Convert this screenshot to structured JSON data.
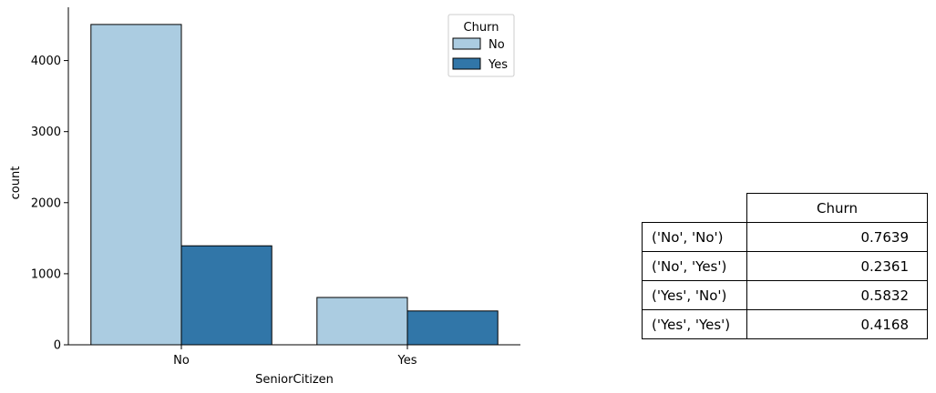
{
  "chart_data": {
    "type": "bar",
    "xlabel": "SeniorCitizen",
    "ylabel": "count",
    "categories": [
      "No",
      "Yes"
    ],
    "ylim": [
      0,
      4750
    ],
    "yticks": [
      0,
      1000,
      2000,
      3000,
      4000
    ],
    "legend": {
      "title": "Churn",
      "position": "top-right"
    },
    "series": [
      {
        "name": "No",
        "color": "#abcce1",
        "values": [
          4508,
          666
        ]
      },
      {
        "name": "Yes",
        "color": "#3176a8",
        "values": [
          1393,
          476
        ]
      }
    ],
    "grid": false
  },
  "table": {
    "header": "Churn",
    "rows": [
      {
        "label": "('No', 'No')",
        "value": "0.7639"
      },
      {
        "label": "('No', 'Yes')",
        "value": "0.2361"
      },
      {
        "label": "('Yes', 'No')",
        "value": "0.5832"
      },
      {
        "label": "('Yes', 'Yes')",
        "value": "0.4168"
      }
    ]
  }
}
